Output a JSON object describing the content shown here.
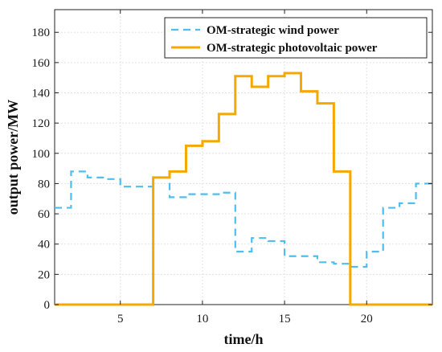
{
  "chart_data": {
    "type": "line",
    "step": true,
    "xlabel": "time/h",
    "ylabel": "output power/MW",
    "xlim": [
      1,
      24
    ],
    "ylim": [
      0,
      195
    ],
    "xticks": [
      5,
      10,
      15,
      20
    ],
    "yticks": [
      0,
      20,
      40,
      60,
      80,
      100,
      120,
      140,
      160,
      180
    ],
    "grid": true,
    "legend_position": "top-right",
    "x": [
      1,
      2,
      3,
      4,
      5,
      6,
      7,
      8,
      9,
      10,
      11,
      12,
      13,
      14,
      15,
      16,
      17,
      18,
      19,
      20,
      21,
      22,
      23
    ],
    "series": [
      {
        "name": "OM-strategic wind power",
        "color": "#4dbeee",
        "style": "dashed",
        "values": [
          64,
          88,
          84,
          83,
          78,
          78,
          84,
          71,
          73,
          73,
          74,
          35,
          44,
          42,
          32,
          32,
          28,
          27,
          25,
          35,
          64,
          67,
          80
        ]
      },
      {
        "name": "OM-strategic photovoltaic power",
        "color": "#f5a800",
        "style": "solid",
        "values": [
          0,
          0,
          0,
          0,
          0,
          0,
          84,
          88,
          105,
          108,
          126,
          151,
          144,
          151,
          153,
          141,
          133,
          88,
          0,
          0,
          0,
          0,
          0
        ]
      }
    ]
  }
}
